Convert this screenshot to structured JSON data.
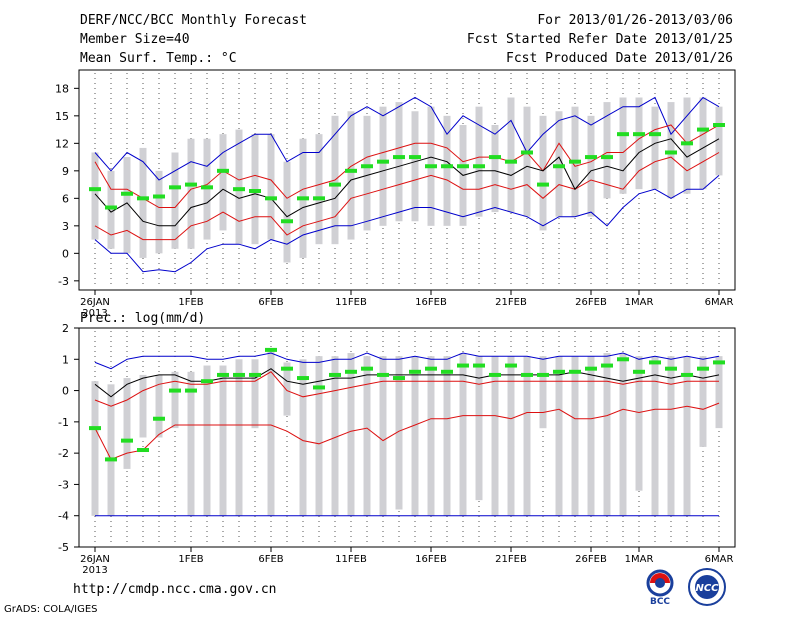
{
  "header": {
    "title": "DERF/NCC/BCC Monthly Forecast",
    "member_size": "Member Size=40",
    "variable_temp": "Mean Surf. Temp.: °C",
    "for_range": "For 2013/01/26-2013/03/06",
    "started": "Fcst Started Refer Date 2013/01/25",
    "produced": "Fcst Produced Date 2013/01/26"
  },
  "footer": {
    "url": "http://cmdp.ncc.cma.gov.cn",
    "grads": "GrADS: COLA/IGES",
    "logo_left_text": "BCC",
    "logo_right_text": "NCC"
  },
  "colors": {
    "box": "#d0d0d4",
    "mean": "#000000",
    "green": "#22dd22",
    "red": "#dd1111",
    "blue": "#0000cc",
    "dots": "#555555"
  },
  "chart_data": [
    {
      "type": "box-ensemble",
      "title": "Mean Surf. Temp.: °C",
      "xlabel_ticks": [
        "26JAN",
        "1FEB",
        "6FEB",
        "11FEB",
        "16FEB",
        "21FEB",
        "26FEB",
        "1MAR",
        "6MAR"
      ],
      "xlabel_ticks_day_index": [
        0,
        6,
        11,
        16,
        21,
        26,
        31,
        34,
        39
      ],
      "xlabel_year": "2013",
      "ylim": [
        -4,
        20
      ],
      "yticks": [
        -3,
        0,
        3,
        6,
        9,
        12,
        15,
        18
      ],
      "box_low": [
        4.5,
        3.5,
        4,
        3,
        2.5,
        3,
        2,
        2.5,
        3.5,
        3,
        3,
        4,
        2.5,
        2,
        3,
        2,
        4,
        4.5,
        4.5,
        5,
        5.5,
        5.5,
        5,
        4.5,
        5,
        6,
        5.5,
        5,
        3,
        5,
        5,
        6.5,
        7,
        7.5,
        8,
        8.5,
        7.5,
        8,
        8.5,
        10
      ],
      "box_high": [
        10,
        8.5,
        8.5,
        7.5,
        7.5,
        9.5,
        9.5,
        11,
        12,
        12,
        10.5,
        10.5,
        7.5,
        11,
        11,
        13.5,
        13.5,
        13.5,
        14.5,
        15,
        14,
        14.5,
        13.5,
        13,
        15,
        13,
        15.5,
        13,
        12.5,
        13,
        15,
        14.5,
        15.5,
        15.5,
        16,
        14.5,
        15,
        16,
        15.5,
        14.5
      ],
      "whisker_low": [
        1.5,
        0.5,
        0,
        -0.5,
        0,
        0.5,
        0.5,
        1.5,
        2.5,
        1,
        1,
        1.5,
        -1,
        -0.5,
        1,
        1,
        1.5,
        2.5,
        3,
        3.5,
        3.5,
        3,
        3,
        3,
        4,
        4.5,
        4.5,
        4,
        2.5,
        4,
        4,
        4,
        6,
        6.5,
        7,
        7,
        6,
        6.5,
        7,
        8.5
      ],
      "whisker_high": [
        11,
        9,
        10.5,
        11.5,
        9,
        11,
        12.5,
        12.5,
        13,
        13.5,
        13,
        13,
        10,
        12.5,
        13,
        15,
        15.5,
        15,
        16,
        16.5,
        15.5,
        16,
        15,
        14,
        16,
        14,
        17,
        16,
        15,
        15.5,
        16,
        15,
        16.5,
        17,
        17,
        16,
        16.5,
        17,
        17,
        16
      ],
      "mean": [
        6.5,
        4.5,
        5.5,
        3.5,
        3,
        3,
        5,
        5.5,
        7,
        6,
        6.5,
        6,
        4,
        5,
        5.5,
        6,
        8,
        8.5,
        9,
        9.5,
        10,
        10.5,
        10,
        8.5,
        9,
        9,
        8.5,
        9.5,
        9,
        10.5,
        7,
        9,
        9.5,
        9,
        11,
        12,
        12.5,
        10.5,
        11.5,
        12.5
      ],
      "green": [
        7,
        5,
        6.5,
        6,
        6.2,
        7.2,
        7.5,
        7.2,
        9,
        7,
        6.8,
        6,
        3.5,
        6,
        6,
        7.5,
        9,
        9.5,
        10,
        10.5,
        10.5,
        9.5,
        9.5,
        9.5,
        9.5,
        10.5,
        10,
        11,
        7.5,
        9.5,
        10,
        10.5,
        10.5,
        13,
        13,
        13,
        11,
        12,
        13.5,
        14
      ],
      "red_low": [
        3,
        2,
        2.5,
        1.5,
        1.5,
        1.5,
        3,
        3.5,
        4.5,
        3.5,
        4,
        4,
        2,
        3,
        3.5,
        4,
        6,
        6.5,
        7,
        7.5,
        8,
        8.5,
        8,
        7,
        7,
        7.5,
        7,
        7.5,
        6,
        7.5,
        7,
        8,
        7.5,
        7,
        9,
        10,
        10.5,
        9,
        10,
        11
      ],
      "red_high": [
        10,
        7,
        7,
        6,
        5,
        5,
        7,
        7.5,
        9,
        8,
        8.5,
        8,
        6,
        7,
        7.5,
        8,
        9.5,
        10.5,
        11,
        11.5,
        12,
        12,
        11.5,
        10,
        10.5,
        10.5,
        10,
        11,
        9,
        12,
        9.5,
        10,
        11,
        11,
        12.5,
        13.5,
        14,
        12,
        13,
        14
      ],
      "blue_low": [
        1.5,
        0,
        0,
        -2,
        -1.8,
        -2,
        -1,
        0.5,
        1,
        1,
        0.5,
        1.5,
        1,
        2,
        2.5,
        3,
        3,
        3.5,
        4,
        4.5,
        5,
        5,
        4.5,
        4,
        4.5,
        5,
        4.5,
        4,
        3,
        4,
        4,
        4.5,
        3,
        5,
        6.5,
        7,
        6,
        7,
        7,
        8.5
      ],
      "blue_high": [
        11,
        9,
        11,
        10,
        8,
        9,
        10,
        9.5,
        11,
        12,
        13,
        13,
        10,
        11,
        11,
        13,
        15,
        16,
        15,
        16,
        17,
        16,
        13,
        15,
        14,
        13,
        14.5,
        11,
        13,
        14.5,
        15,
        14,
        15,
        16,
        16,
        17,
        13,
        15,
        17,
        16
      ]
    },
    {
      "type": "box-ensemble",
      "title": "Prec.: log(mm/d)",
      "xlabel_ticks": [
        "26JAN",
        "1FEB",
        "6FEB",
        "11FEB",
        "16FEB",
        "21FEB",
        "26FEB",
        "1MAR",
        "6MAR"
      ],
      "xlabel_ticks_day_index": [
        0,
        6,
        11,
        16,
        21,
        26,
        31,
        34,
        39
      ],
      "xlabel_year": "2013",
      "ylim": [
        -5,
        2
      ],
      "yticks": [
        -5,
        -4,
        -3,
        -2,
        -1,
        0,
        1,
        2
      ],
      "box_low": [
        -4,
        -3,
        -2.5,
        -1.5,
        -1.5,
        -0.8,
        -0.5,
        -0.5,
        -0.5,
        -0.5,
        -1.2,
        -0.5,
        -0.5,
        -4,
        -4,
        -4,
        -4,
        -4,
        -1,
        -3.8,
        -4,
        -1.5,
        -1.2,
        -4,
        -3.5,
        -4,
        -1.8,
        -2.5,
        -1.2,
        -1,
        -4,
        -1.5,
        -1.5,
        -1.5,
        -2.5,
        -1.3,
        -1.8,
        -1.5,
        -1.2,
        -1
      ],
      "box_high": [
        0,
        0,
        0.2,
        0.3,
        0.4,
        0.5,
        0.5,
        0.5,
        0.7,
        0.7,
        0.9,
        1.2,
        0.7,
        0.9,
        1,
        1,
        1,
        1,
        1,
        1,
        1,
        1,
        1,
        1.1,
        1,
        1,
        1,
        1,
        0.9,
        1,
        1,
        1,
        1,
        1.1,
        1,
        0.9,
        1,
        1,
        1,
        1
      ],
      "whisker_low": [
        -4,
        -4,
        -2.5,
        -1.5,
        -1.5,
        -1.2,
        -4,
        -4,
        -4,
        -4,
        -1.2,
        -4,
        -0.8,
        -4,
        -4,
        -4,
        -4,
        -4,
        -4,
        -3.8,
        -4,
        -4,
        -4,
        -4,
        -3.5,
        -4,
        -4,
        -4,
        -1.2,
        -4,
        -4,
        -4,
        -4,
        -4,
        -3.2,
        -4,
        -4,
        -4,
        -1.8,
        -1.2
      ],
      "whisker_high": [
        0.3,
        0.2,
        0.4,
        0.5,
        0.5,
        0.6,
        0.6,
        0.8,
        0.8,
        1,
        1,
        1.3,
        0.9,
        1,
        1.1,
        1.1,
        1.2,
        1.1,
        1.1,
        1.1,
        1.1,
        1.1,
        1.1,
        1.2,
        1.1,
        1.1,
        1.1,
        1.1,
        1.1,
        1.1,
        1.1,
        1.1,
        1.2,
        1.2,
        1.1,
        1.1,
        1.1,
        1.1,
        1.1,
        1.1
      ],
      "mean": [
        0.2,
        -0.2,
        0.2,
        0.4,
        0.5,
        0.5,
        0.3,
        0.3,
        0.4,
        0.4,
        0.4,
        0.7,
        0.3,
        0.2,
        0.3,
        0.4,
        0.4,
        0.5,
        0.5,
        0.5,
        0.5,
        0.5,
        0.5,
        0.5,
        0.4,
        0.5,
        0.5,
        0.5,
        0.5,
        0.5,
        0.6,
        0.5,
        0.4,
        0.3,
        0.4,
        0.5,
        0.4,
        0.5,
        0.4,
        0.5
      ],
      "green": [
        -1.2,
        -2.2,
        -1.6,
        -1.9,
        -0.9,
        0,
        0,
        0.3,
        0.5,
        0.5,
        0.5,
        1.3,
        0.7,
        0.4,
        0.1,
        0.5,
        0.6,
        0.7,
        0.5,
        0.4,
        0.6,
        0.7,
        0.6,
        0.8,
        0.8,
        0.5,
        0.8,
        0.5,
        0.5,
        0.6,
        0.6,
        0.7,
        0.8,
        1,
        0.6,
        0.9,
        0.7,
        0.5,
        0.7,
        0.9
      ],
      "red_low": [
        -0.3,
        -0.5,
        -0.3,
        0,
        0.2,
        0.3,
        0.2,
        0.2,
        0.3,
        0.3,
        0.3,
        0.6,
        0,
        -0.2,
        -0.1,
        0,
        0.1,
        0.2,
        0.3,
        0.3,
        0.3,
        0.3,
        0.3,
        0.3,
        0.2,
        0.3,
        0.3,
        0.3,
        0.3,
        0.3,
        0.3,
        0.3,
        0.3,
        0.2,
        0.3,
        0.3,
        0.2,
        0.3,
        0.3,
        0.3
      ],
      "red_high": [
        -1.2,
        -2.2,
        -2,
        -1.9,
        -1.4,
        -1.1,
        -1.1,
        -1.1,
        -1.1,
        -1.1,
        -1.1,
        -1.1,
        -1.3,
        -1.6,
        -1.7,
        -1.5,
        -1.3,
        -1.2,
        -1.6,
        -1.3,
        -1.1,
        -0.9,
        -0.9,
        -0.8,
        -0.8,
        -0.8,
        -0.9,
        -0.7,
        -0.7,
        -0.6,
        -0.9,
        -0.9,
        -0.8,
        -0.6,
        -0.7,
        -0.6,
        -0.6,
        -0.5,
        -0.6,
        -0.4
      ],
      "blue_low": [
        -4,
        -4,
        -4,
        -4,
        -4,
        -4,
        -4,
        -4,
        -4,
        -4,
        -4,
        -4,
        -4,
        -4,
        -4,
        -4,
        -4,
        -4,
        -4,
        -4,
        -4,
        -4,
        -4,
        -4,
        -4,
        -4,
        -4,
        -4,
        -4,
        -4,
        -4,
        -4,
        -4,
        -4,
        -4,
        -4,
        -4,
        -4,
        -4,
        -4
      ],
      "blue_high": [
        0.9,
        0.7,
        1,
        1.1,
        1.1,
        1.1,
        1.1,
        1,
        1,
        1.1,
        1.1,
        1.2,
        1,
        0.9,
        0.9,
        1,
        1,
        1.2,
        1,
        1,
        1.1,
        1,
        1,
        1.2,
        1.1,
        1.1,
        1.1,
        1.1,
        1,
        1.1,
        1.1,
        1.1,
        1.1,
        1.2,
        1,
        1.1,
        1,
        1.1,
        1,
        1.1
      ]
    }
  ]
}
